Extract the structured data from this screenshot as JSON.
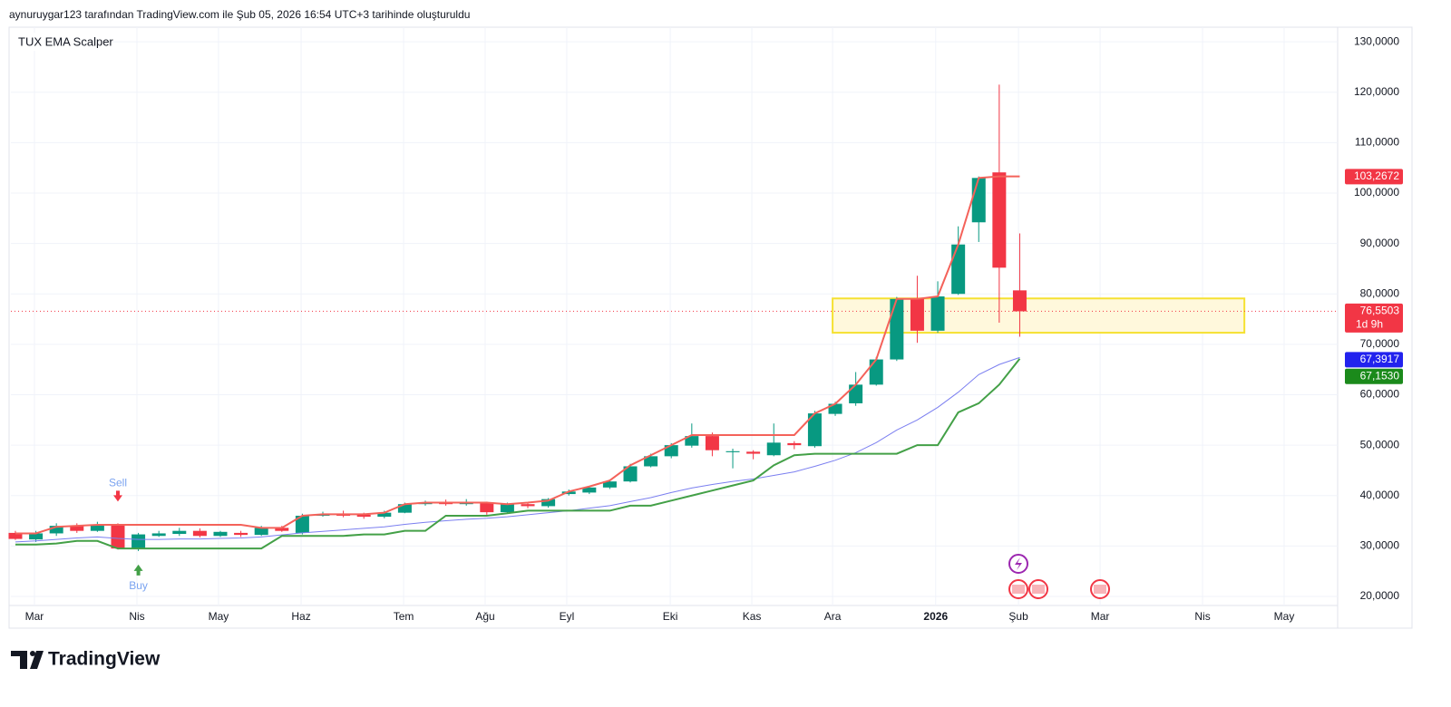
{
  "header": {
    "caption": "aynuruygar123 tarafından TradingView.com ile Şub 05, 2026 16:54 UTC+3 tarihinde oluşturuldu"
  },
  "footer": {
    "logo": "TradingView"
  },
  "chart_data": {
    "type": "candlestick",
    "title": "TUX EMA Scalper",
    "up_color": "#089981",
    "down_color": "#f23645",
    "open": [
      32.6,
      31.3,
      32.5,
      34.0,
      33.0,
      34.2,
      29.5,
      32.0,
      32.4,
      33.0,
      32.0,
      32.6,
      32.2,
      33.6,
      32.6,
      36.0,
      36.4,
      36.2,
      35.8,
      36.6,
      38.3,
      38.6,
      38.3,
      38.5,
      36.7,
      38.3,
      37.9,
      40.3,
      40.6,
      41.6,
      42.8,
      45.8,
      47.8,
      49.9,
      51.8,
      48.6,
      48.7,
      48.0,
      50.4,
      49.8,
      56.2,
      58.3,
      62.0,
      67.0,
      79.0,
      72.7,
      80.0,
      94.2,
      104.1,
      80.7
    ],
    "high": [
      33.0,
      33.0,
      34.5,
      34.5,
      34.8,
      34.5,
      32.6,
      33.0,
      33.6,
      33.5,
      33.0,
      33.0,
      34.0,
      34.0,
      36.4,
      36.8,
      37.0,
      36.6,
      37.0,
      38.6,
      39.0,
      39.2,
      39.3,
      38.8,
      38.6,
      38.6,
      39.5,
      41.2,
      41.8,
      43.2,
      46.3,
      48.3,
      50.4,
      54.3,
      52.5,
      49.3,
      49.0,
      54.3,
      50.8,
      56.8,
      58.6,
      64.5,
      67.5,
      79.4,
      83.6,
      82.5,
      93.4,
      103.3,
      121.5,
      92.0
    ],
    "low": [
      31.2,
      30.8,
      32.0,
      32.6,
      32.8,
      29.3,
      29.0,
      31.8,
      32.0,
      31.7,
      31.8,
      31.8,
      32.0,
      32.8,
      32.3,
      35.8,
      35.7,
      35.4,
      35.5,
      36.5,
      38.0,
      38.0,
      38.0,
      36.2,
      36.4,
      37.5,
      37.6,
      40.0,
      40.3,
      41.3,
      42.6,
      45.6,
      47.4,
      49.5,
      47.8,
      45.4,
      47.2,
      47.8,
      49.2,
      49.5,
      55.8,
      57.8,
      61.8,
      66.7,
      70.3,
      72.3,
      79.8,
      90.3,
      74.3,
      71.5
    ],
    "close": [
      31.4,
      32.5,
      34.0,
      33.0,
      34.2,
      29.5,
      32.3,
      32.5,
      33.0,
      32.0,
      32.8,
      32.2,
      33.6,
      33.0,
      36.0,
      36.3,
      36.0,
      35.8,
      36.6,
      38.3,
      38.6,
      38.3,
      38.5,
      36.7,
      38.3,
      37.9,
      39.3,
      40.8,
      41.6,
      42.8,
      45.8,
      47.8,
      50.0,
      51.8,
      49.0,
      48.8,
      48.3,
      50.5,
      50.0,
      56.3,
      58.2,
      62.0,
      67.0,
      79.0,
      72.7,
      79.5,
      89.8,
      103.0,
      85.2,
      76.5503
    ],
    "lines": [
      {
        "color": "#7b7ff0",
        "values": [
          30.8,
          31.0,
          31.3,
          31.6,
          31.8,
          31.5,
          31.3,
          31.3,
          31.4,
          31.4,
          31.5,
          31.6,
          31.8,
          32.2,
          32.6,
          32.9,
          33.2,
          33.5,
          33.8,
          34.3,
          34.7,
          35.0,
          35.3,
          35.5,
          35.8,
          36.2,
          36.6,
          37.0,
          37.5,
          38.0,
          38.8,
          39.6,
          40.6,
          41.5,
          42.2,
          42.8,
          43.3,
          44.0,
          44.7,
          45.8,
          47.0,
          48.5,
          50.5,
          53.0,
          55.0,
          57.5,
          60.5,
          64.0,
          66.0,
          67.3917
        ]
      },
      {
        "color": "#43a047",
        "values": [
          30.3,
          30.3,
          30.5,
          31.0,
          31.0,
          29.5,
          29.5,
          29.5,
          29.5,
          29.5,
          29.5,
          29.5,
          29.5,
          32.0,
          32.0,
          32.0,
          32.0,
          32.3,
          32.3,
          33.0,
          33.0,
          36.0,
          36.0,
          36.0,
          36.5,
          37.0,
          37.0,
          37.0,
          37.0,
          37.0,
          38.0,
          38.0,
          39.0,
          40.0,
          41.0,
          42.0,
          43.0,
          46.0,
          48.0,
          48.3,
          48.3,
          48.3,
          48.3,
          48.3,
          50.0,
          50.0,
          56.5,
          58.3,
          62.0,
          67.153
        ]
      },
      {
        "color": "#f4625a",
        "values": [
          32.5,
          32.5,
          33.8,
          34.0,
          34.2,
          34.2,
          34.2,
          34.2,
          34.2,
          34.2,
          34.2,
          34.2,
          33.6,
          33.6,
          36.0,
          36.3,
          36.3,
          36.3,
          36.6,
          38.3,
          38.6,
          38.6,
          38.6,
          38.6,
          38.3,
          38.6,
          39.0,
          40.8,
          41.8,
          43.0,
          46.0,
          48.0,
          50.0,
          52.0,
          52.0,
          52.0,
          52.0,
          52.0,
          52.0,
          56.3,
          58.2,
          62.0,
          67.0,
          79.0,
          79.0,
          79.5,
          89.8,
          103.0,
          103.3,
          103.3
        ]
      }
    ],
    "zone": {
      "xlim": [
        39.87,
        59.96
      ],
      "ylim": [
        72.3,
        79.1
      ],
      "fill": "#fff8dc",
      "stroke": "#f5e132"
    },
    "signals": [
      {
        "label": "Sell",
        "x": 5,
        "side": "above",
        "color": "#7aa3f0",
        "arrow_color": "#f23645"
      },
      {
        "label": "Buy",
        "x": 6,
        "side": "below",
        "color": "#7aa3f0",
        "arrow_color": "#43a047"
      }
    ],
    "price_labels": [
      {
        "value": 103.2672,
        "label": "103,2672",
        "color": "#f23645"
      },
      {
        "value": 76.5503,
        "label": "76,5503",
        "sublabel": "1d 9h",
        "color": "#f23645"
      },
      {
        "value": 67.3917,
        "label": "67,3917",
        "color": "#2222ee"
      },
      {
        "value": 67.153,
        "label": "67,1530",
        "color": "#1b8a1b"
      }
    ],
    "xlim": [
      -0.22,
      64.51
    ],
    "ylim": [
      18.2,
      132.9
    ],
    "yticks": [
      {
        "value": 20,
        "label": "20,0000"
      },
      {
        "value": 30,
        "label": "30,0000"
      },
      {
        "value": 40,
        "label": "40,0000"
      },
      {
        "value": 50,
        "label": "50,0000"
      },
      {
        "value": 60,
        "label": "60,0000"
      },
      {
        "value": 70,
        "label": "70,0000"
      },
      {
        "value": 80,
        "label": "80,0000"
      },
      {
        "value": 90,
        "label": "90,0000"
      },
      {
        "value": 100,
        "label": "100,0000"
      },
      {
        "value": 110,
        "label": "110,0000"
      },
      {
        "value": 120,
        "label": "120,0000"
      },
      {
        "value": 130,
        "label": "130,0000"
      }
    ],
    "xticks": [
      {
        "value": 0.93,
        "label": "Mar"
      },
      {
        "value": 5.93,
        "label": "Nis"
      },
      {
        "value": 9.91,
        "label": "May"
      },
      {
        "value": 13.94,
        "label": "Haz"
      },
      {
        "value": 18.94,
        "label": "Tem"
      },
      {
        "value": 22.92,
        "label": "Ağu"
      },
      {
        "value": 26.9,
        "label": "Eyl"
      },
      {
        "value": 31.95,
        "label": "Eki"
      },
      {
        "value": 35.93,
        "label": "Kas"
      },
      {
        "value": 39.87,
        "label": "Ara"
      },
      {
        "value": 44.9,
        "label": "2026",
        "bold": true
      },
      {
        "value": 48.94,
        "label": "Şub"
      },
      {
        "value": 52.92,
        "label": "Mar"
      },
      {
        "value": 57.92,
        "label": "Nis"
      },
      {
        "value": 61.9,
        "label": "May"
      }
    ],
    "grid": true
  }
}
